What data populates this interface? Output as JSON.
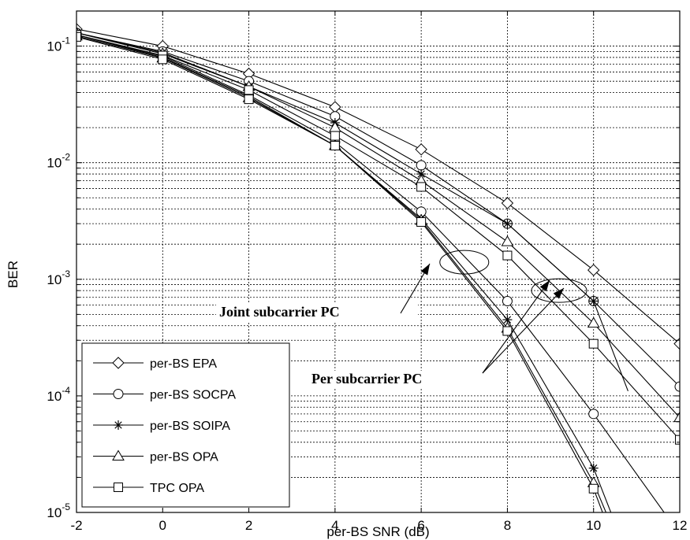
{
  "chart_data": {
    "type": "line",
    "xlabel": "per-BS SNR (dB)",
    "ylabel": "BER",
    "xlim": [
      -2,
      12
    ],
    "ylim": [
      1e-05,
      0.2
    ],
    "yscale": "log",
    "grid": true,
    "x_ticks": [
      -2,
      0,
      2,
      4,
      6,
      8,
      10,
      12
    ],
    "y_ticks": [
      {
        "base": "10",
        "exp": "-1",
        "value": 0.1
      },
      {
        "base": "10",
        "exp": "-2",
        "value": 0.01
      },
      {
        "base": "10",
        "exp": "-3",
        "value": 0.001
      },
      {
        "base": "10",
        "exp": "-4",
        "value": 0.0001
      },
      {
        "base": "10",
        "exp": "-5",
        "value": 1e-05
      }
    ],
    "legend_position": "bottom-left",
    "series": [
      {
        "name": "per-BS EPA",
        "marker": "diamond",
        "x": [
          -2,
          0,
          2,
          4,
          6,
          8,
          10,
          12
        ],
        "y": [
          0.14,
          0.1,
          0.058,
          0.03,
          0.013,
          0.0045,
          0.0012,
          0.00028
        ]
      },
      {
        "name": "per-BS SOCPA",
        "marker": "circle",
        "x": [
          -2,
          0,
          2,
          4,
          6,
          8,
          10,
          12
        ],
        "y": [
          0.13,
          0.09,
          0.05,
          0.025,
          0.0095,
          0.003,
          0.00065,
          0.00012
        ],
        "x2": [
          -2,
          0,
          2,
          4,
          6,
          8,
          10,
          12
        ],
        "y2": [
          0.125,
          0.082,
          0.038,
          0.015,
          0.0038,
          0.00065,
          7e-05,
          6.5e-06
        ]
      },
      {
        "name": "per-BS SOIPA",
        "marker": "star",
        "x": [
          -2,
          0,
          2,
          4,
          6,
          8,
          10,
          10.8
        ],
        "y": [
          0.13,
          0.088,
          0.045,
          0.022,
          0.008,
          0.003,
          0.00065,
          0.00011
        ],
        "x2": [
          -2,
          0,
          2,
          4,
          6,
          8,
          10,
          10.6
        ],
        "y2": [
          0.125,
          0.08,
          0.037,
          0.014,
          0.0033,
          0.00045,
          2.4e-05,
          6.5e-06
        ]
      },
      {
        "name": "per-BS OPA",
        "marker": "triangle",
        "x": [
          -2,
          0,
          2,
          4,
          6,
          8,
          10,
          12
        ],
        "y": [
          0.13,
          0.086,
          0.045,
          0.02,
          0.007,
          0.0021,
          0.00042,
          6.5e-05
        ],
        "x2": [
          -2,
          0,
          2,
          4,
          6,
          8,
          10,
          10.5
        ],
        "y2": [
          0.122,
          0.079,
          0.036,
          0.014,
          0.0032,
          0.00038,
          1.8e-05,
          6.5e-06
        ]
      },
      {
        "name": "TPC OPA",
        "marker": "square",
        "x": [
          -2,
          0,
          2,
          4,
          6,
          8,
          10,
          12
        ],
        "y": [
          0.125,
          0.083,
          0.042,
          0.017,
          0.0062,
          0.0016,
          0.00028,
          4.2e-05
        ],
        "x2": [
          -2,
          0,
          2,
          4,
          6,
          8,
          10,
          10.4
        ],
        "y2": [
          0.12,
          0.077,
          0.035,
          0.014,
          0.0031,
          0.00036,
          1.6e-05,
          6.5e-06
        ]
      }
    ],
    "annotations": [
      {
        "text": "Joint subcarrier PC",
        "ellipse_at": {
          "x": 7.0,
          "y": 0.0014
        }
      },
      {
        "text": "Per subcarrier PC",
        "ellipse_at": {
          "x": 9.2,
          "y": 0.0008
        }
      }
    ]
  }
}
